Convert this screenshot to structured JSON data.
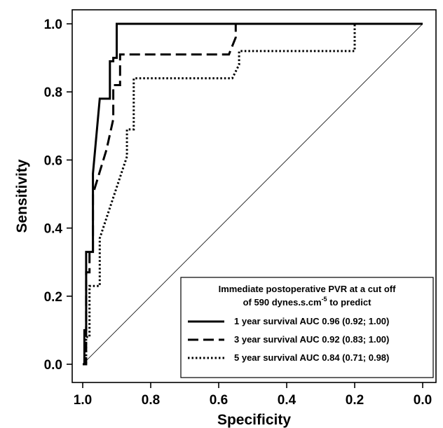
{
  "chart_data": {
    "type": "line",
    "title": "",
    "xlabel": "Specificity",
    "ylabel": "Sensitivity",
    "xlim": [
      1.0,
      0.0
    ],
    "ylim": [
      0.0,
      1.0
    ],
    "x_reversed": true,
    "grid": false,
    "xticks": [
      "1.0",
      "0.8",
      "0.6",
      "0.4",
      "0.2",
      "0.0"
    ],
    "yticks": [
      "0.0",
      "0.2",
      "0.4",
      "0.6",
      "0.8",
      "1.0"
    ],
    "reference_line": {
      "x": [
        1.0,
        0.0
      ],
      "y": [
        0.0,
        1.0
      ]
    },
    "legend": {
      "placement": "bottom-right",
      "title_line1": "Immediate postoperative PVR at a cut off",
      "title_line2_prefix": "of 590 dynes.s.cm",
      "title_line2_sup": "-5",
      "title_line2_suffix": " to predict"
    },
    "series": [
      {
        "name": "1 year survival AUC 0.96 (0.92; 1.00)",
        "style": "solid",
        "points": [
          [
            1.0,
            0.0
          ],
          [
            0.995,
            0.0
          ],
          [
            0.995,
            0.1
          ],
          [
            0.99,
            0.1
          ],
          [
            0.99,
            0.33
          ],
          [
            0.97,
            0.33
          ],
          [
            0.97,
            0.56
          ],
          [
            0.95,
            0.78
          ],
          [
            0.92,
            0.78
          ],
          [
            0.92,
            0.89
          ],
          [
            0.91,
            0.89
          ],
          [
            0.91,
            0.9
          ],
          [
            0.9,
            0.9
          ],
          [
            0.9,
            1.0
          ],
          [
            0.0,
            1.0
          ]
        ]
      },
      {
        "name": "3 year survival AUC 0.92 (0.83; 1.00)",
        "style": "dashed",
        "points": [
          [
            1.0,
            0.0
          ],
          [
            0.99,
            0.0
          ],
          [
            0.99,
            0.27
          ],
          [
            0.98,
            0.27
          ],
          [
            0.98,
            0.33
          ],
          [
            0.97,
            0.33
          ],
          [
            0.97,
            0.5
          ],
          [
            0.93,
            0.63
          ],
          [
            0.91,
            0.72
          ],
          [
            0.91,
            0.82
          ],
          [
            0.89,
            0.82
          ],
          [
            0.89,
            0.91
          ],
          [
            0.57,
            0.91
          ],
          [
            0.55,
            0.96
          ],
          [
            0.55,
            1.0
          ],
          [
            0.0,
            1.0
          ]
        ]
      },
      {
        "name": "5 year survival AUC 0.84 (0.71; 0.98)",
        "style": "dotted",
        "points": [
          [
            1.0,
            0.0
          ],
          [
            0.99,
            0.0
          ],
          [
            0.99,
            0.08
          ],
          [
            0.98,
            0.08
          ],
          [
            0.98,
            0.23
          ],
          [
            0.95,
            0.23
          ],
          [
            0.95,
            0.37
          ],
          [
            0.9,
            0.52
          ],
          [
            0.87,
            0.61
          ],
          [
            0.87,
            0.69
          ],
          [
            0.85,
            0.69
          ],
          [
            0.85,
            0.84
          ],
          [
            0.56,
            0.84
          ],
          [
            0.54,
            0.88
          ],
          [
            0.54,
            0.92
          ],
          [
            0.2,
            0.92
          ],
          [
            0.2,
            1.0
          ],
          [
            0.0,
            1.0
          ]
        ]
      }
    ]
  }
}
